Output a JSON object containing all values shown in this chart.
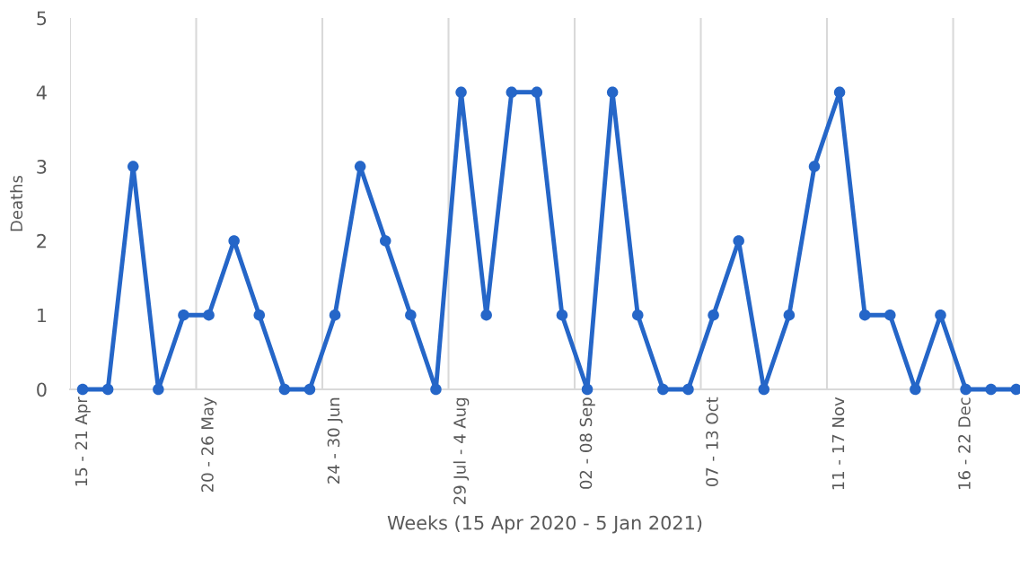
{
  "chart_data": {
    "type": "line",
    "xlabel": "Weeks (15 Apr 2020 - 5 Jan 2021)",
    "ylabel": "Deaths",
    "categories": [
      "15 - 21 Apr",
      null,
      null,
      null,
      null,
      "20 - 26 May",
      null,
      null,
      null,
      null,
      "24 - 30 Jun",
      null,
      null,
      null,
      null,
      "29 Jul - 4 Aug",
      null,
      null,
      null,
      null,
      "02 - 08 Sep",
      null,
      null,
      null,
      null,
      "07 - 13 Oct",
      null,
      null,
      null,
      null,
      "11 - 17 Nov",
      null,
      null,
      null,
      null,
      "16 - 22 Dec",
      null,
      null
    ],
    "series": [
      {
        "color": "#2566c8",
        "values": [
          0,
          0,
          3,
          0,
          1,
          1,
          2,
          1,
          0,
          0,
          1,
          3,
          2,
          1,
          0,
          4,
          1,
          4,
          4,
          1,
          0,
          4,
          1,
          0,
          0,
          1,
          2,
          0,
          1,
          3,
          4,
          1,
          1,
          0,
          1,
          0,
          0,
          0
        ]
      }
    ],
    "ylim": [
      0,
      5
    ],
    "yticks": [
      0,
      1,
      2,
      3,
      4,
      5
    ],
    "grid": "x",
    "marker": "circle",
    "line_style": "solid",
    "legend": false
  }
}
